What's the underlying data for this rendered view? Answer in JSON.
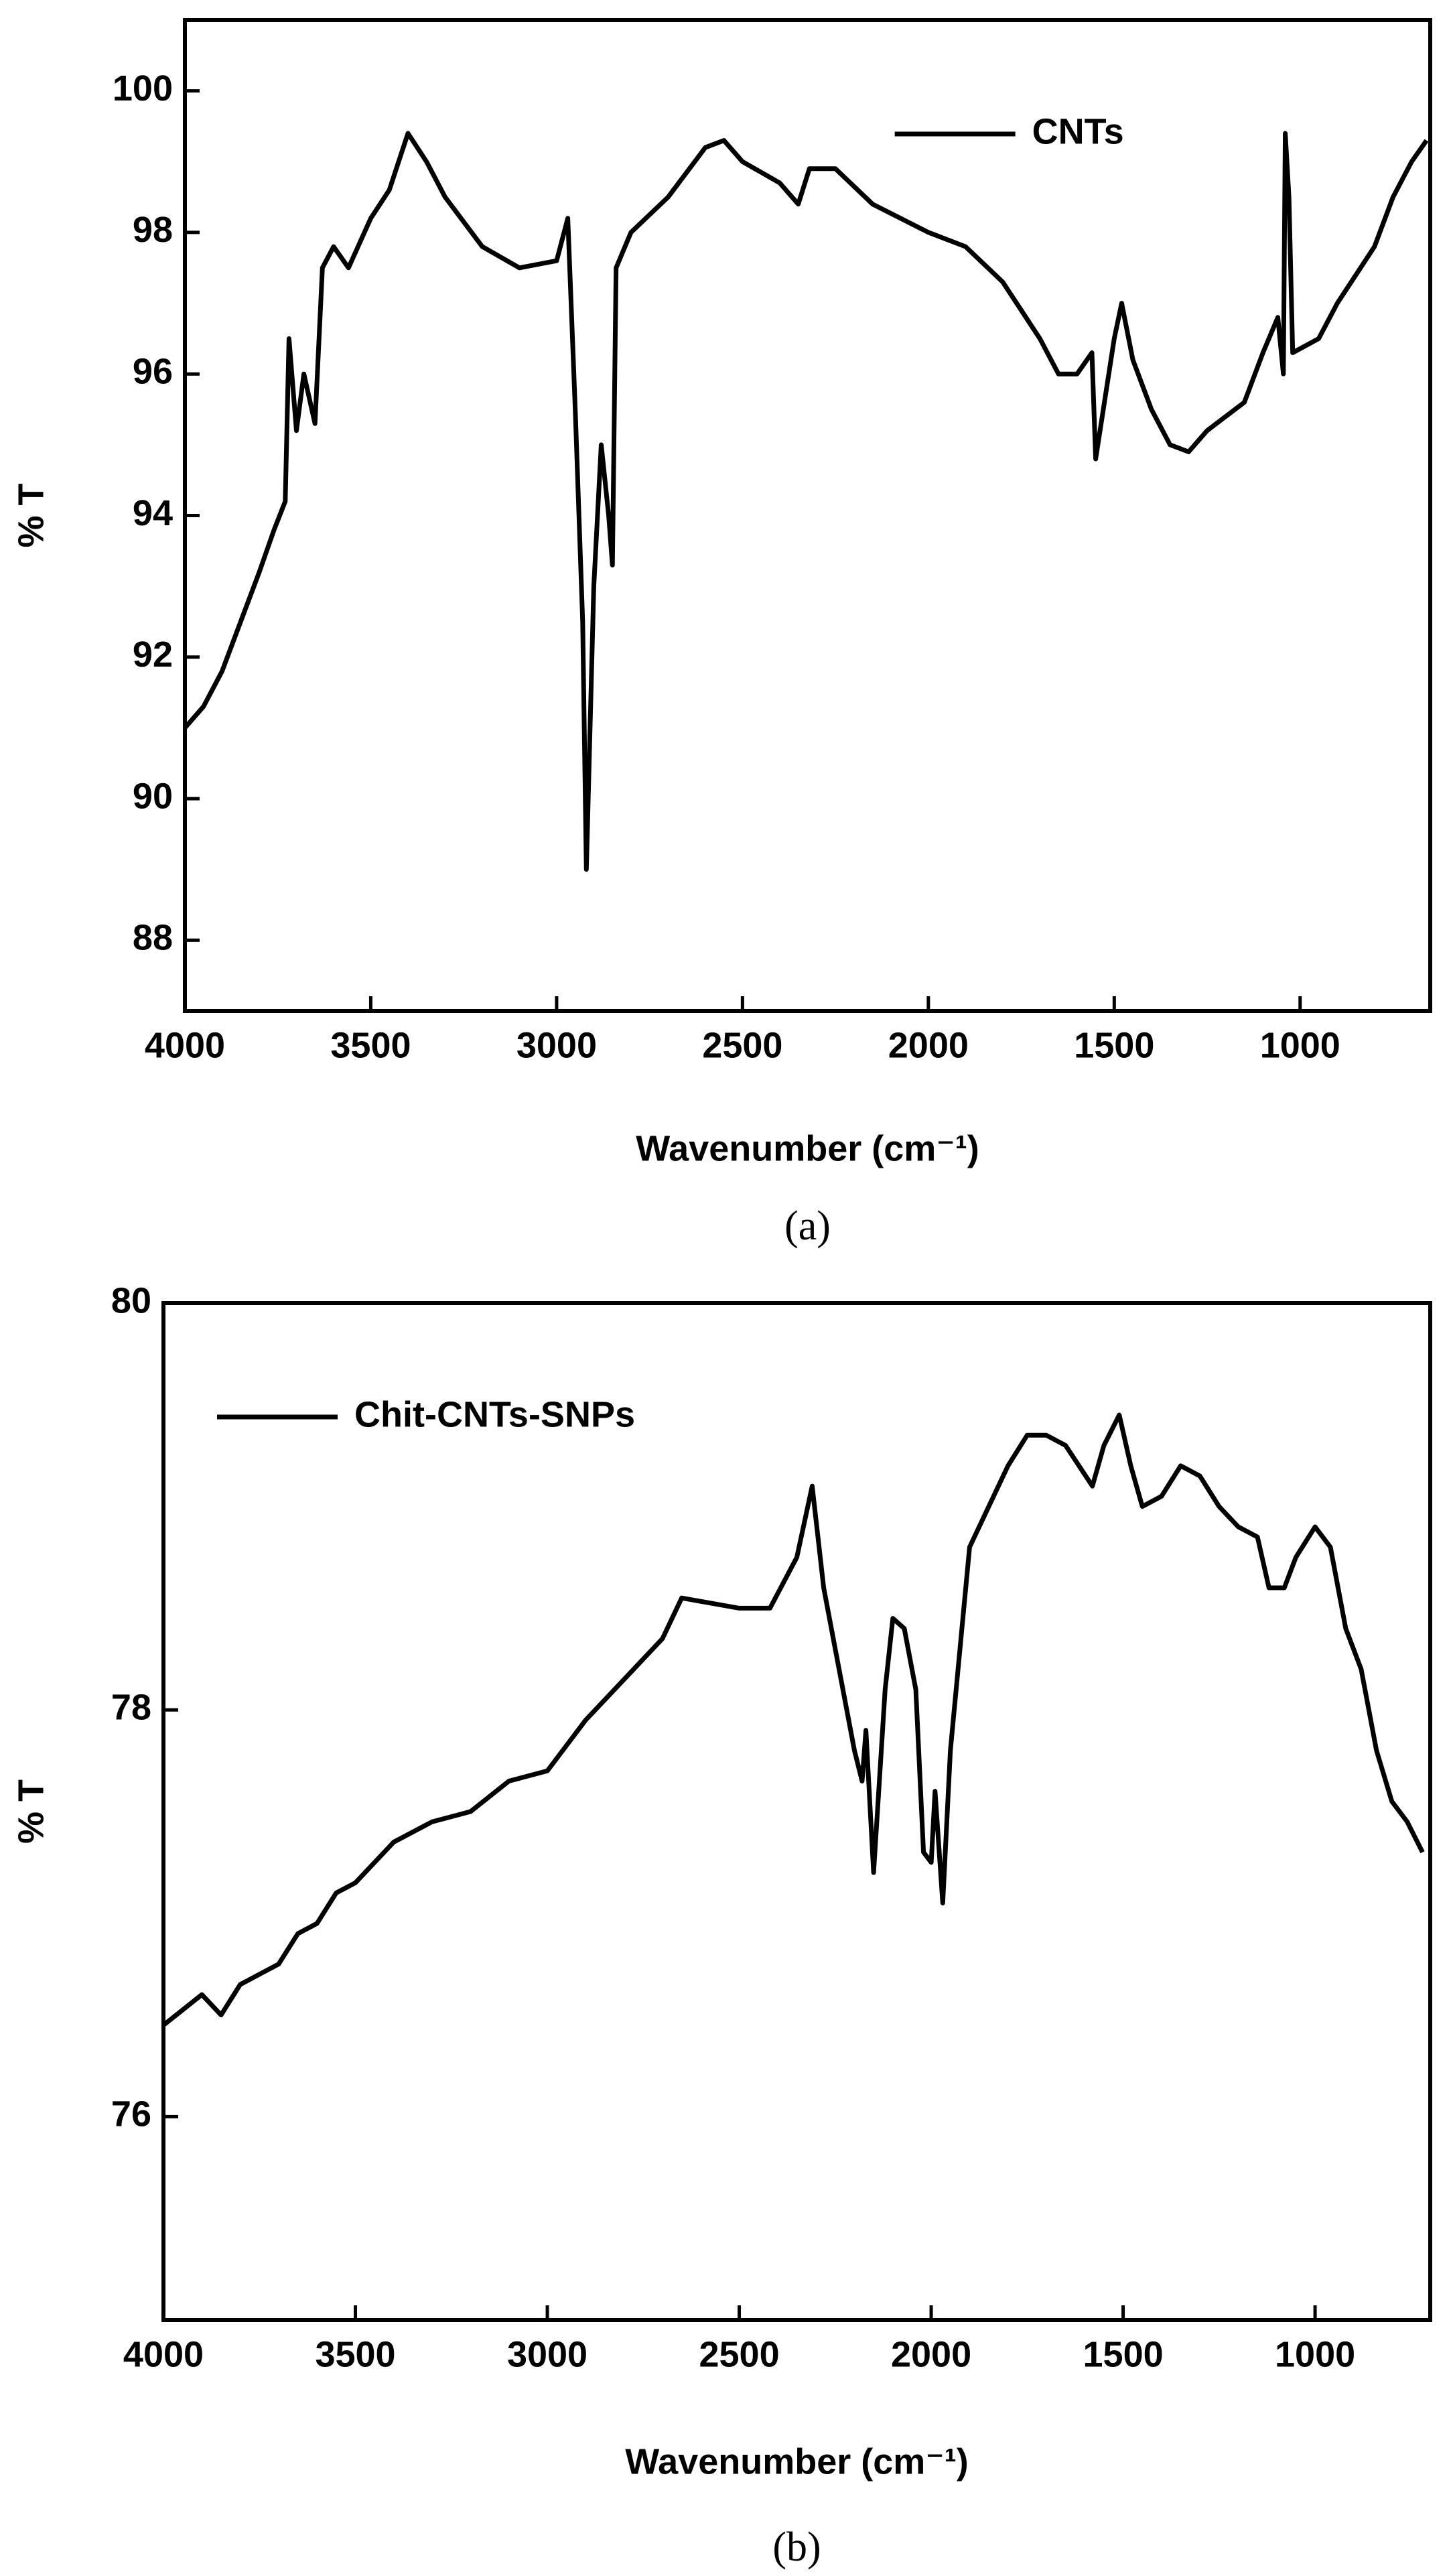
{
  "chart_data": [
    {
      "type": "line",
      "caption": "(a)",
      "xlabel": "Wavenumber (cm⁻¹)",
      "ylabel": "% T",
      "xlim": [
        4000,
        650
      ],
      "ylim": [
        87,
        101
      ],
      "xticks": [
        4000,
        3500,
        3000,
        2500,
        2000,
        1500,
        1000
      ],
      "yticks": [
        88,
        90,
        92,
        94,
        96,
        98,
        100
      ],
      "legend": "upper right",
      "x": [
        4000,
        3950,
        3900,
        3850,
        3800,
        3760,
        3730,
        3720,
        3700,
        3680,
        3650,
        3630,
        3600,
        3560,
        3500,
        3450,
        3400,
        3350,
        3300,
        3200,
        3100,
        3000,
        2970,
        2950,
        2930,
        2920,
        2900,
        2880,
        2860,
        2850,
        2840,
        2800,
        2700,
        2600,
        2550,
        2500,
        2400,
        2350,
        2320,
        2250,
        2150,
        2000,
        1900,
        1800,
        1700,
        1650,
        1600,
        1560,
        1550,
        1500,
        1480,
        1450,
        1400,
        1350,
        1300,
        1250,
        1150,
        1100,
        1060,
        1045,
        1040,
        1030,
        1020,
        950,
        900,
        800,
        750,
        700,
        660
      ],
      "series": [
        {
          "name": "CNTs",
          "color": "#000000",
          "values": [
            91.0,
            91.3,
            91.8,
            92.5,
            93.2,
            93.8,
            94.2,
            96.5,
            95.2,
            96.0,
            95.3,
            97.5,
            97.8,
            97.5,
            98.2,
            98.6,
            99.4,
            99.0,
            98.5,
            97.8,
            97.5,
            97.6,
            98.2,
            95.5,
            92.5,
            89.0,
            93.0,
            95.0,
            94.0,
            93.3,
            97.5,
            98.0,
            98.5,
            99.2,
            99.3,
            99.0,
            98.7,
            98.4,
            98.9,
            98.9,
            98.4,
            98.0,
            97.8,
            97.3,
            96.5,
            96.0,
            96.0,
            96.3,
            94.8,
            96.5,
            97.0,
            96.2,
            95.5,
            95.0,
            94.9,
            95.2,
            95.6,
            96.3,
            96.8,
            96.0,
            99.4,
            98.5,
            96.3,
            96.5,
            97.0,
            97.8,
            98.5,
            99.0,
            99.3
          ]
        }
      ]
    },
    {
      "type": "line",
      "caption": "(b)",
      "xlabel": "Wavenumber (cm⁻¹)",
      "ylabel": "% T",
      "xlim": [
        4000,
        700
      ],
      "ylim": [
        75,
        80
      ],
      "xticks": [
        4000,
        3500,
        3000,
        2500,
        2000,
        1500,
        1000
      ],
      "yticks": [
        76,
        78,
        80
      ],
      "legend": "upper left",
      "x": [
        4000,
        3900,
        3850,
        3800,
        3700,
        3650,
        3600,
        3550,
        3500,
        3400,
        3300,
        3200,
        3100,
        3000,
        2900,
        2800,
        2700,
        2650,
        2500,
        2420,
        2350,
        2310,
        2280,
        2250,
        2200,
        2180,
        2170,
        2150,
        2120,
        2100,
        2070,
        2040,
        2020,
        2000,
        1990,
        1970,
        1950,
        1920,
        1900,
        1850,
        1800,
        1750,
        1700,
        1650,
        1580,
        1550,
        1510,
        1480,
        1450,
        1400,
        1350,
        1300,
        1250,
        1200,
        1150,
        1120,
        1080,
        1050,
        1000,
        960,
        920,
        880,
        840,
        800,
        760,
        720
      ],
      "series": [
        {
          "name": "Chit-CNTs-SNPs",
          "color": "#000000",
          "values": [
            76.45,
            76.6,
            76.5,
            76.65,
            76.75,
            76.9,
            76.95,
            77.1,
            77.15,
            77.35,
            77.45,
            77.5,
            77.65,
            77.7,
            77.95,
            78.15,
            78.35,
            78.55,
            78.5,
            78.5,
            78.75,
            79.1,
            78.6,
            78.3,
            77.8,
            77.65,
            77.9,
            77.2,
            78.1,
            78.45,
            78.4,
            78.1,
            77.3,
            77.25,
            77.6,
            77.05,
            77.8,
            78.4,
            78.8,
            79.0,
            79.2,
            79.35,
            79.35,
            79.3,
            79.1,
            79.3,
            79.45,
            79.2,
            79.0,
            79.05,
            79.2,
            79.15,
            79.0,
            78.9,
            78.85,
            78.6,
            78.6,
            78.75,
            78.9,
            78.8,
            78.4,
            78.2,
            77.8,
            77.55,
            77.45,
            77.3
          ]
        }
      ]
    }
  ]
}
